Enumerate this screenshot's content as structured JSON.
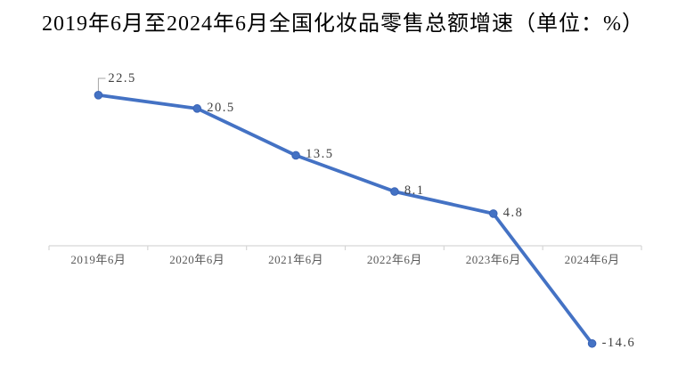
{
  "page": {
    "background": "#ffffff"
  },
  "chart_data": {
    "type": "line",
    "title": "2019年6月至2024年6月全国化妆品零售总额增速（单位：%）",
    "unit": "%",
    "categories": [
      "2019年6月",
      "2020年6月",
      "2021年6月",
      "2022年6月",
      "2023年6月",
      "2024年6月"
    ],
    "series": [
      {
        "name": "全国化妆品零售总额增速",
        "values": [
          22.5,
          20.5,
          13.5,
          8.1,
          4.8,
          -14.6
        ]
      }
    ],
    "data_labels": [
      "22.5",
      "20.5",
      "13.5",
      "8.1",
      "4.8",
      "-14.6"
    ],
    "layout": {
      "grid": false,
      "legend": false,
      "y_axis_hidden": true,
      "x_axis_at_zero": true,
      "ticks_between_categories": true,
      "first_point_label_has_leader_line": true,
      "ylim": [
        -20,
        26
      ]
    },
    "colors": {
      "line": "#4472c4",
      "marker_fill": "#4472c4",
      "marker_edge": "#3a63b5",
      "axis": "#d6d6d6",
      "axis_text": "#595959",
      "data_label_text": "#404040",
      "leader_line": "#a6a6a6",
      "title_text": "#000000"
    }
  }
}
